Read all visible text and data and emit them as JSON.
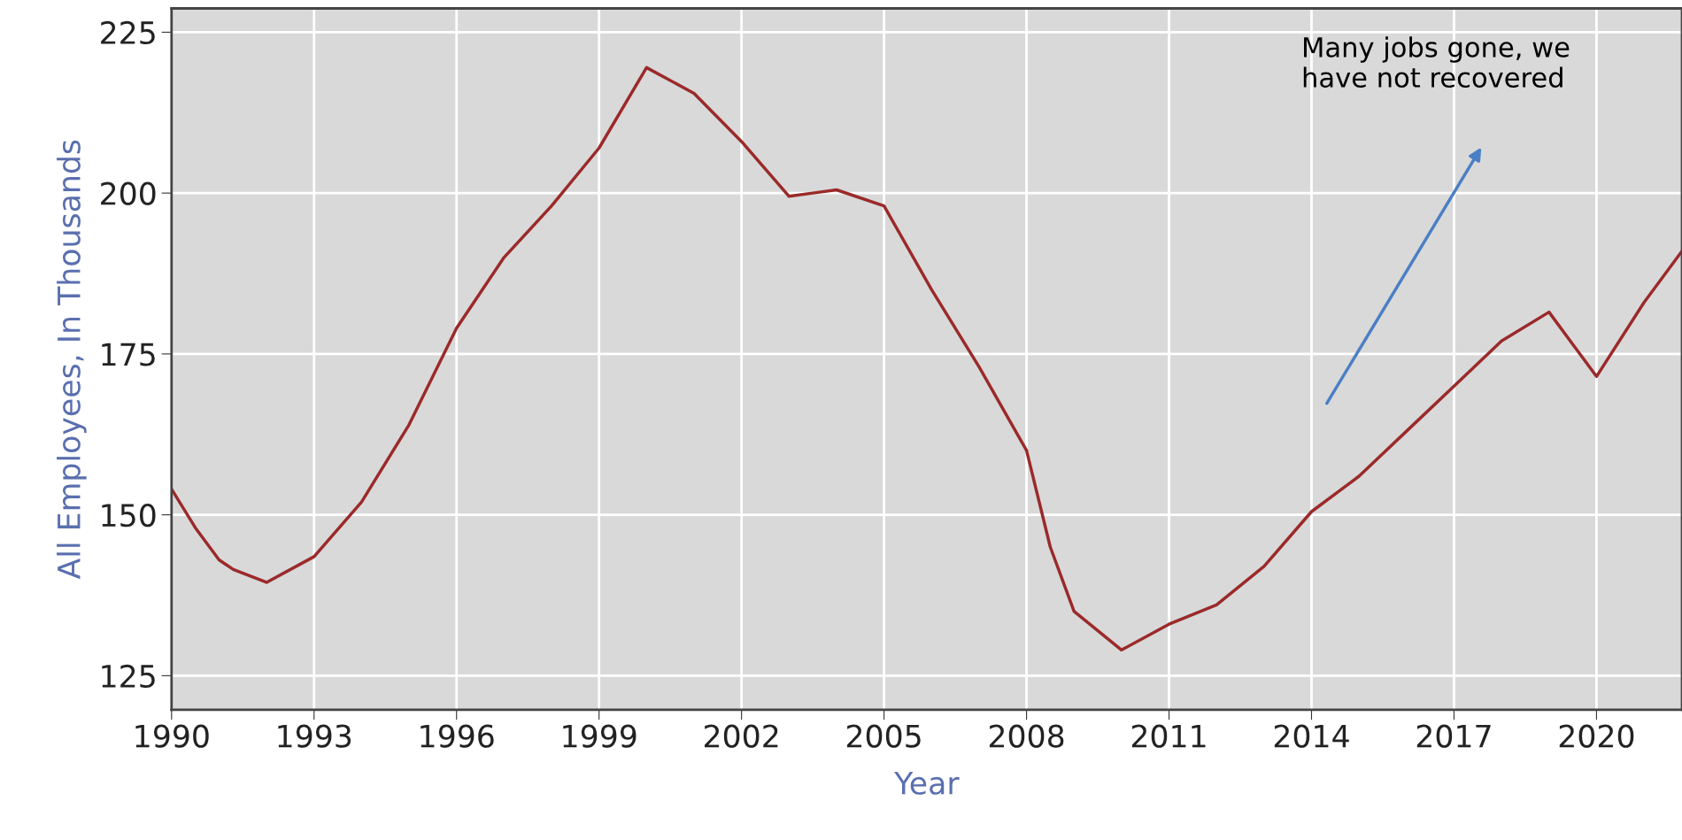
{
  "chart_data": {
    "type": "line",
    "xlabel": "Year",
    "ylabel": "All Employees, In Thousands",
    "x": [
      1990,
      1990.5,
      1991,
      1991.3,
      1992,
      1993,
      1994,
      1995,
      1996,
      1997,
      1998,
      1999,
      2000,
      2001,
      2002,
      2003,
      2003.5,
      2004,
      2005,
      2006,
      2007,
      2008,
      2008.5,
      2009,
      2010,
      2011,
      2012,
      2013,
      2014,
      2015,
      2016,
      2017,
      2018,
      2019,
      2020,
      2021,
      2021.8
    ],
    "series": [
      {
        "color": "#9b2a2a",
        "values": [
          154,
          148,
          143,
          141.5,
          139.5,
          143.5,
          152,
          164,
          179,
          190,
          198,
          207,
          219.5,
          215.5,
          208,
          199.5,
          200,
          200.5,
          198,
          185,
          173,
          160,
          145,
          135,
          129,
          133,
          136,
          142,
          150.5,
          156,
          163,
          170,
          177,
          181.5,
          171.5,
          183,
          191
        ]
      }
    ],
    "xlim": [
      1990,
      2021.8
    ],
    "ylim": [
      119.7,
      228.7
    ],
    "xticks": [
      1990,
      1993,
      1996,
      1999,
      2002,
      2005,
      2008,
      2011,
      2014,
      2017,
      2020
    ],
    "yticks": [
      125,
      150,
      175,
      200,
      225
    ],
    "grid": true,
    "marker": "none",
    "line_style": "solid",
    "annotations": [
      "Many jobs gone, we\nhave not recovered"
    ]
  }
}
